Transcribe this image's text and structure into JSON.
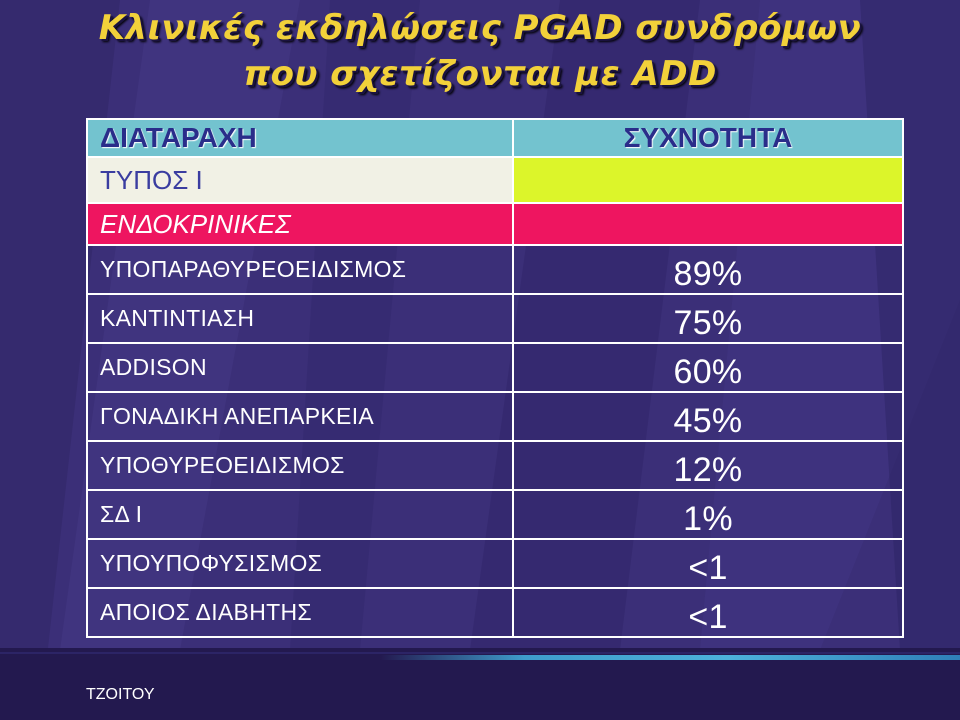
{
  "slide": {
    "title_line1": "Κλινικές εκδηλώσεις PGAD συνδρόμων",
    "title_line2": "που σχετίζονται με ADD",
    "author": "ΤΖΟΙΤΟΥ"
  },
  "table": {
    "header": {
      "col1": "ΔΙΑΤΑΡΑΧΗ",
      "col2": "ΣΥΧΝΟΤΗΤΑ"
    },
    "type_row": "ΤΥΠΟΣ Ι",
    "category_row": "ΕΝΔΟΚΡΙΝΙΚΕΣ",
    "rows": [
      {
        "disorder": "ΥΠΟΠΑΡΑΘΥΡΕΟΕΙΔΙΣΜΟΣ",
        "frequency": "89%"
      },
      {
        "disorder": "ΚΑΝΤΙΝΤΙΑΣΗ",
        "frequency": "75%"
      },
      {
        "disorder": "ADDISON",
        "frequency": "60%"
      },
      {
        "disorder": "ΓΟΝΑΔΙΚΗ ΑΝΕΠΑΡΚΕΙΑ",
        "frequency": "45%"
      },
      {
        "disorder": "ΥΠΟΘΥΡΕΟΕΙΔΙΣΜΟΣ",
        "frequency": "12%"
      },
      {
        "disorder": "ΣΔ Ι",
        "frequency": "1%"
      },
      {
        "disorder": "ΥΠΟΥΠΟΦΥΣΙΣΜΟΣ",
        "frequency": "<1"
      },
      {
        "disorder": "ΑΠΟΙΟΣ ΔΙΑΒΗΤΗΣ",
        "frequency": "<1"
      }
    ]
  },
  "colors": {
    "background": "#3b2f78",
    "title": "#f2d13a",
    "header": "#73c3cf",
    "type_cell": "#f1f1e5",
    "type_value_cell": "#dcf52a",
    "category_row": "#ee1560"
  }
}
